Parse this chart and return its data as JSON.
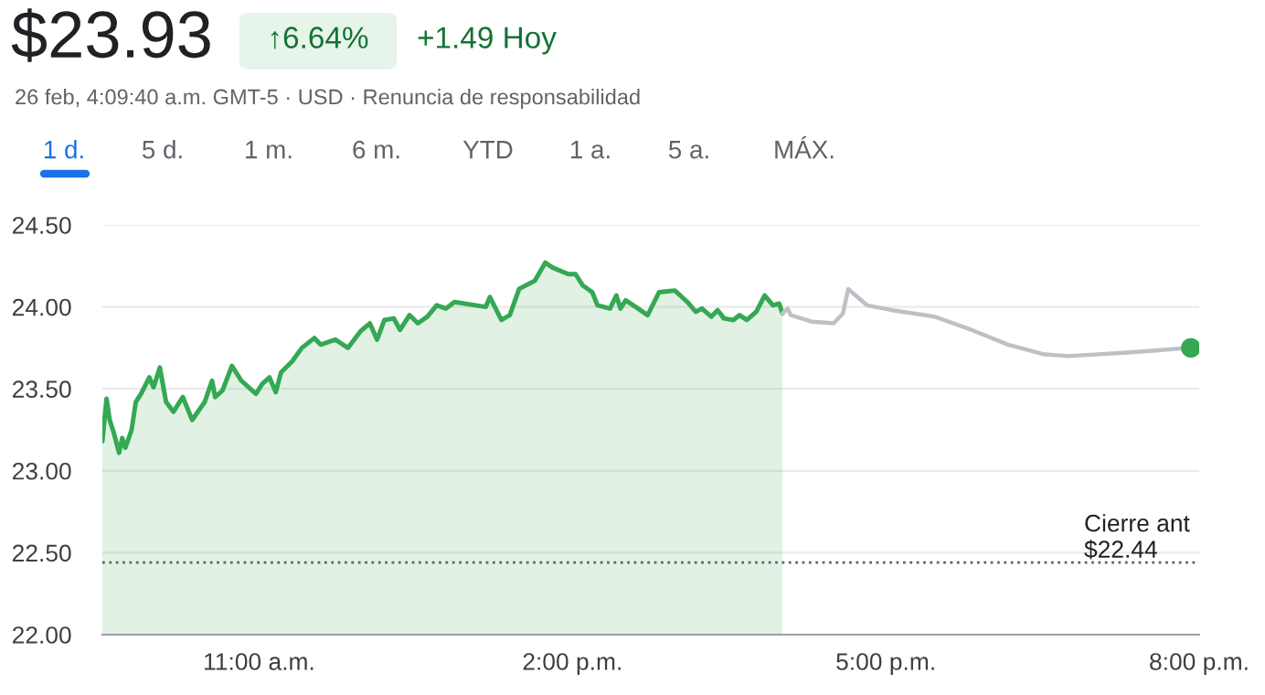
{
  "chart_data": {
    "type": "area",
    "title": "$23.93",
    "subtitle": "26 feb, 4:09:40 a.m. GMT-5 · USD · Renuncia de responsabilidad",
    "annotations": [
      "↑6.64%",
      "+1.49 Hoy",
      "1 d.",
      "5 d.",
      "1 m.",
      "6 m.",
      "YTD",
      "1 a.",
      "5 a.",
      "MÁX."
    ],
    "series": [
      {
        "color": "#34a853",
        "x": [
          9.5,
          9.54,
          9.57,
          9.61,
          9.66,
          9.69,
          9.72,
          9.78,
          9.82,
          9.87,
          9.95,
          9.99,
          10.05,
          10.11,
          10.18,
          10.27,
          10.36,
          10.48,
          10.55,
          10.58,
          10.65,
          10.74,
          10.83,
          10.97,
          11.03,
          11.1,
          11.16,
          11.21,
          11.32,
          11.41,
          11.53,
          11.59,
          11.73,
          11.85,
          11.97,
          12.06,
          12.13,
          12.2,
          12.29,
          12.35,
          12.44,
          12.52,
          12.61,
          12.7,
          12.79,
          12.87,
          13.17,
          13.21,
          13.32,
          13.4,
          13.49,
          13.64,
          13.74,
          13.81,
          13.96,
          14.03,
          14.1,
          14.19,
          14.24,
          14.36,
          14.42,
          14.46,
          14.51,
          14.65,
          14.72,
          14.83,
          14.98,
          15.1,
          15.18,
          15.24,
          15.33,
          15.39,
          15.45,
          15.54,
          15.6,
          15.67,
          15.76,
          15.84,
          15.92,
          15.98,
          16.01
        ],
        "values": [
          23.18,
          23.44,
          23.31,
          23.23,
          23.11,
          23.2,
          23.14,
          23.25,
          23.42,
          23.47,
          23.57,
          23.51,
          23.63,
          23.42,
          23.36,
          23.45,
          23.31,
          23.42,
          23.55,
          23.45,
          23.49,
          23.64,
          23.55,
          23.47,
          23.53,
          23.57,
          23.48,
          23.6,
          23.67,
          23.75,
          23.81,
          23.77,
          23.8,
          23.75,
          23.85,
          23.9,
          23.8,
          23.92,
          23.93,
          23.86,
          23.95,
          23.9,
          23.94,
          24.01,
          23.99,
          24.03,
          24.0,
          24.06,
          23.92,
          23.95,
          24.11,
          24.16,
          24.27,
          24.24,
          24.2,
          24.2,
          24.13,
          24.09,
          24.01,
          23.99,
          24.07,
          23.99,
          24.04,
          23.98,
          23.95,
          24.09,
          24.1,
          24.03,
          23.97,
          23.99,
          23.94,
          23.98,
          23.93,
          23.92,
          23.95,
          23.92,
          23.97,
          24.07,
          24.01,
          24.02,
          23.96
        ]
      },
      {
        "type": "line",
        "color": "#bdc1c6",
        "x": [
          16.01,
          16.06,
          16.09,
          16.29,
          16.5,
          16.59,
          16.64,
          16.71,
          16.82,
          17.06,
          17.47,
          17.82,
          18.17,
          18.52,
          18.75,
          19.28,
          19.92
        ],
        "values": [
          23.96,
          23.99,
          23.95,
          23.91,
          23.9,
          23.96,
          24.11,
          24.07,
          24.01,
          23.98,
          23.94,
          23.86,
          23.77,
          23.71,
          23.7,
          23.72,
          23.75
        ]
      },
      {
        "type": "scatter",
        "color": "#34a853",
        "marker": "circle",
        "x": [
          19.92
        ],
        "values": [
          23.75
        ]
      }
    ],
    "xlim": [
      9.5,
      20
    ],
    "xticks": [
      {
        "value": 11,
        "label": "11:00 a.m."
      },
      {
        "value": 14,
        "label": "2:00 p.m."
      },
      {
        "value": 17,
        "label": "5:00 p.m."
      },
      {
        "value": 20,
        "label": "8:00 p.m."
      }
    ],
    "ylim": [
      22,
      24.5
    ],
    "yticks": [
      {
        "value": 22,
        "label": "22.00"
      },
      {
        "value": 22.5,
        "label": "22.50"
      },
      {
        "value": 23,
        "label": "23.00"
      },
      {
        "value": 23.5,
        "label": "23.50"
      },
      {
        "value": 24,
        "label": "24.00"
      },
      {
        "value": 24.5,
        "label": "24.50"
      }
    ],
    "ref_lines": [
      {
        "axis": "y",
        "value": 22.44,
        "label": "Cierre ant\n$22.44",
        "color": "#5f6368",
        "line_style": "dotted"
      }
    ],
    "grid": "y",
    "legend": false
  }
}
